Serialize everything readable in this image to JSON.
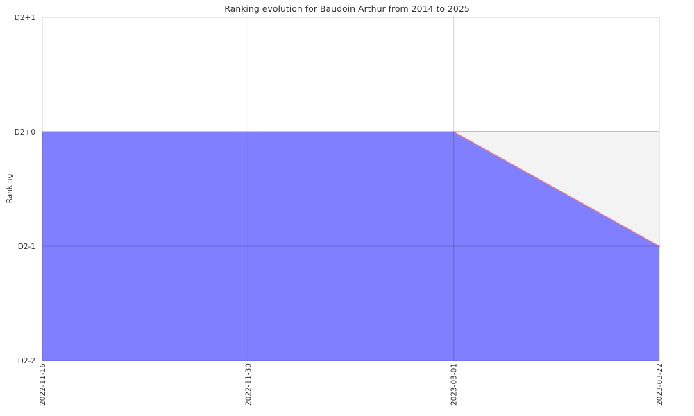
{
  "chart_data": {
    "type": "area",
    "title": "Ranking evolution for Baudoin Arthur from 2014 to 2025",
    "ylabel": "Ranking",
    "xlabel": "",
    "x": [
      "2022-11-16",
      "2022-11-30",
      "2023-03-01",
      "2023-03-22"
    ],
    "y_ticks": [
      "D2-2",
      "D2-1",
      "D2+0",
      "D2+1"
    ],
    "ylim": [
      0,
      3
    ],
    "grid": true,
    "series": [
      {
        "values": [
          2,
          2,
          2,
          1
        ],
        "fill_color": "#7f7fff",
        "line_color": "#ff7f7f"
      }
    ],
    "top_band": {
      "values": [
        2,
        2,
        2,
        2
      ],
      "fill_color": "#f3f3f3"
    },
    "band_line_color": "#7777ee"
  }
}
